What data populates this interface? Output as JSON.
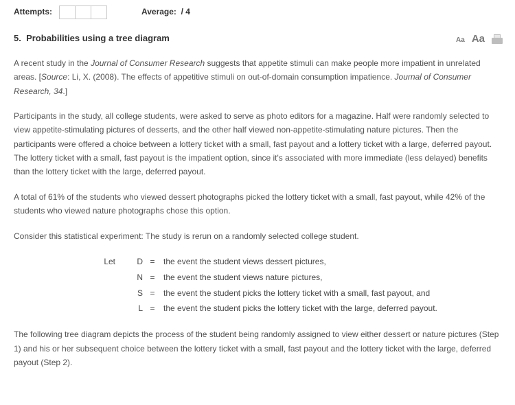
{
  "header": {
    "attempts_label": "Attempts:",
    "average_label": "Average:",
    "average_denom": "/ 4"
  },
  "title": {
    "number": "5.",
    "text": "Probabilities using a tree diagram"
  },
  "tools": {
    "aa_small": "Aa",
    "aa_large": "Aa"
  },
  "paragraphs": {
    "p1_a": "A recent study in the ",
    "p1_journal": "Journal of Consumer Research",
    "p1_b": " suggests that appetite stimuli can make people more impatient in unrelated areas. [",
    "p1_src_label": "Source",
    "p1_c": ": Li, X. (2008). The effects of appetitive stimuli on out-of-domain consumption impatience. ",
    "p1_cite_ital": "Journal of Consumer Research, 34",
    "p1_d": ".]",
    "p2": "Participants in the study, all college students, were asked to serve as photo editors for a magazine. Half were randomly selected to view appetite-stimulating pictures of desserts, and the other half viewed non-appetite-stimulating nature pictures. Then the participants were offered a choice between a lottery ticket with a small, fast payout and a lottery ticket with a large, deferred payout. The lottery ticket with a small, fast payout is the impatient option, since it's associated with more immediate (less delayed) benefits than the lottery ticket with the large, deferred payout.",
    "p3": "A total of 61% of the students who viewed dessert photographs picked the lottery ticket with a small, fast payout, while 42% of the students who viewed nature photographs chose this option.",
    "p4": "Consider this statistical experiment: The study is rerun on a randomly selected college student.",
    "p5": "The following tree diagram depicts the process of the student being randomly assigned to view either dessert or nature pictures (Step 1) and his or her subsequent choice between the lottery ticket with a small, fast payout and the lottery ticket with the large, deferred payout (Step 2)."
  },
  "defs": {
    "let_word": "Let",
    "eq": "=",
    "rows": [
      {
        "sym": "D",
        "desc": "the event the student views dessert pictures,"
      },
      {
        "sym": "N",
        "desc": "the event the student views nature pictures,"
      },
      {
        "sym": "S",
        "desc": "the event the student picks the lottery ticket with a small, fast payout, and"
      },
      {
        "sym": "L",
        "desc": "the event the student picks the lottery ticket with the large, deferred payout."
      }
    ]
  }
}
